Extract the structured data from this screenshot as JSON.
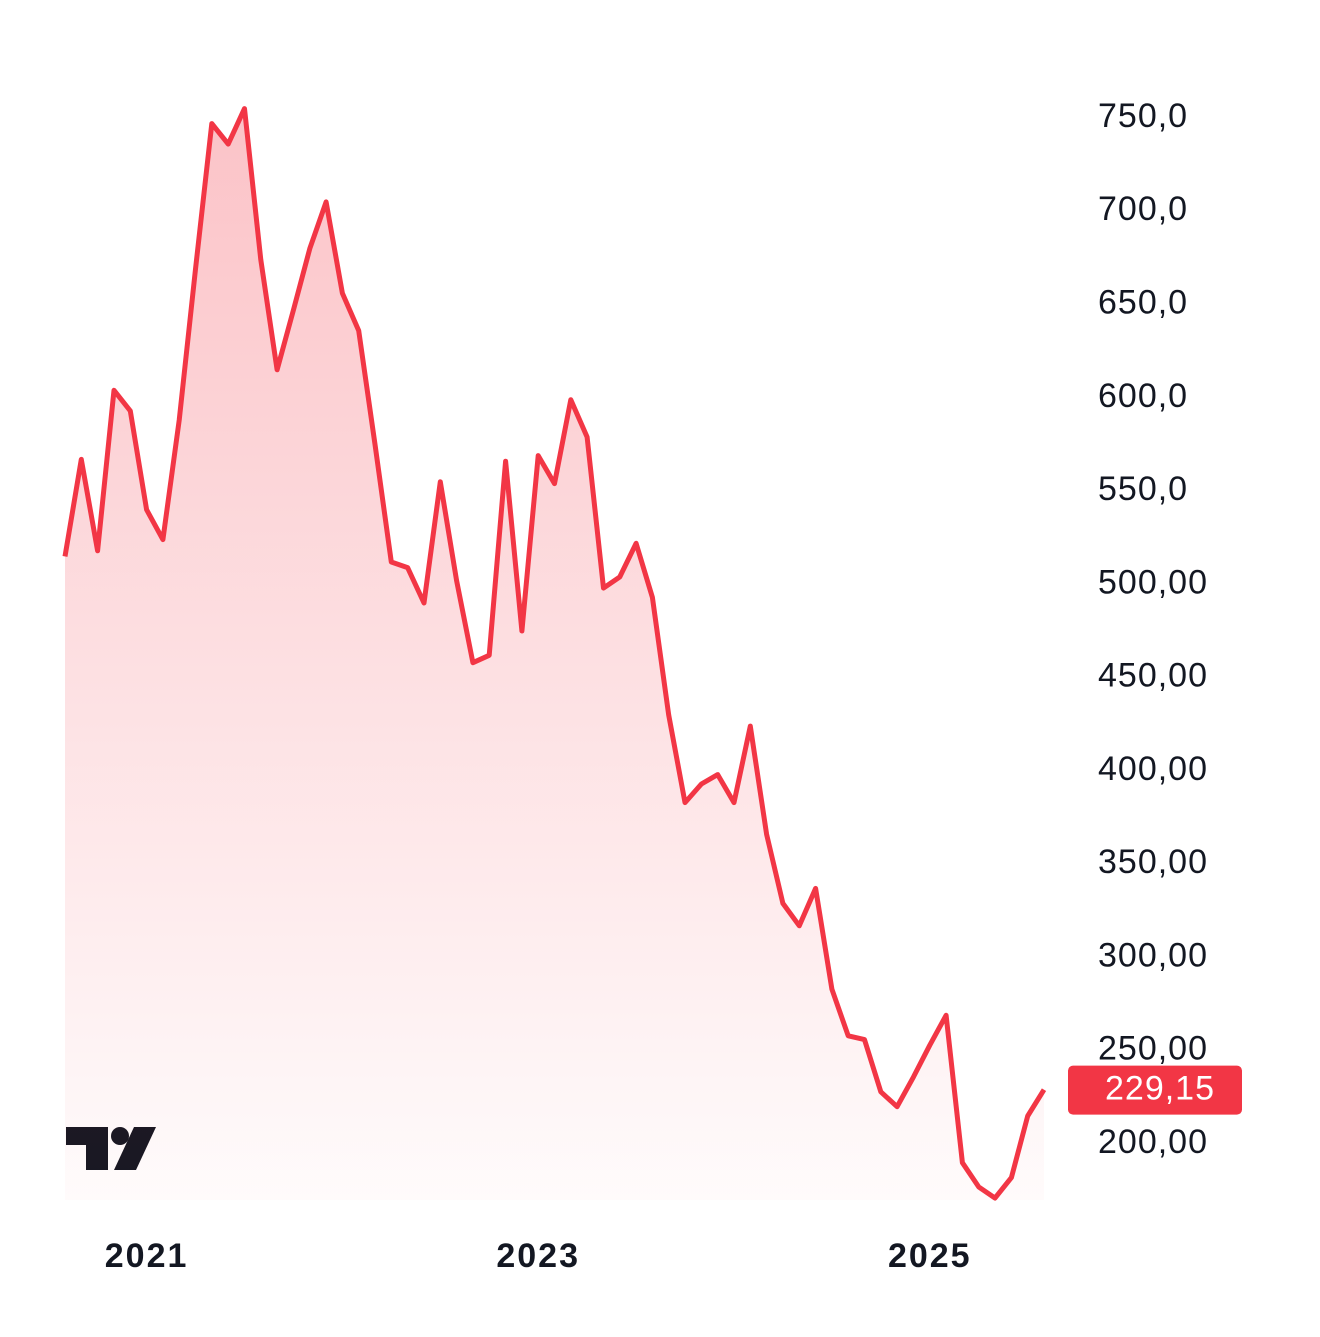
{
  "chart_data": {
    "type": "area",
    "categories": [
      null,
      null,
      null,
      null,
      null,
      "2021",
      null,
      null,
      null,
      null,
      null,
      null,
      null,
      null,
      null,
      null,
      null,
      null,
      null,
      null,
      null,
      null,
      null,
      null,
      null,
      null,
      null,
      null,
      null,
      "2023",
      null,
      null,
      null,
      null,
      null,
      null,
      null,
      null,
      null,
      null,
      null,
      null,
      null,
      null,
      null,
      null,
      null,
      null,
      null,
      null,
      null,
      null,
      null,
      "2025",
      null,
      null,
      null,
      null,
      null,
      null,
      null
    ],
    "values": [
      515,
      567,
      518,
      604,
      593,
      540,
      524,
      588,
      669,
      747,
      736,
      755,
      674,
      615,
      647,
      680,
      705,
      656,
      636,
      575,
      512,
      509,
      490,
      555,
      502,
      458,
      462,
      566,
      475,
      569,
      554,
      599,
      579,
      498,
      504,
      522,
      493,
      430,
      383,
      393,
      398,
      383,
      424,
      366,
      329,
      317,
      337,
      283,
      258,
      256,
      228,
      220,
      236,
      253,
      269,
      190,
      177,
      171,
      182,
      215,
      229.15
    ],
    "last_value_label": "229,15",
    "color": "#f23645",
    "ylim": [
      170,
      780
    ],
    "yticks": [
      {
        "value": 200,
        "label": "200,00"
      },
      {
        "value": 250,
        "label": "250,00"
      },
      {
        "value": 300,
        "label": "300,00"
      },
      {
        "value": 350,
        "label": "350,00"
      },
      {
        "value": 400,
        "label": "400,00"
      },
      {
        "value": 450,
        "label": "450,00"
      },
      {
        "value": 500,
        "label": "500,00"
      },
      {
        "value": 550,
        "label": "550,0"
      },
      {
        "value": 600,
        "label": "600,0"
      },
      {
        "value": 650,
        "label": "650,0"
      },
      {
        "value": 700,
        "label": "700,0"
      },
      {
        "value": 750,
        "label": "750,0"
      }
    ],
    "grid": false
  }
}
